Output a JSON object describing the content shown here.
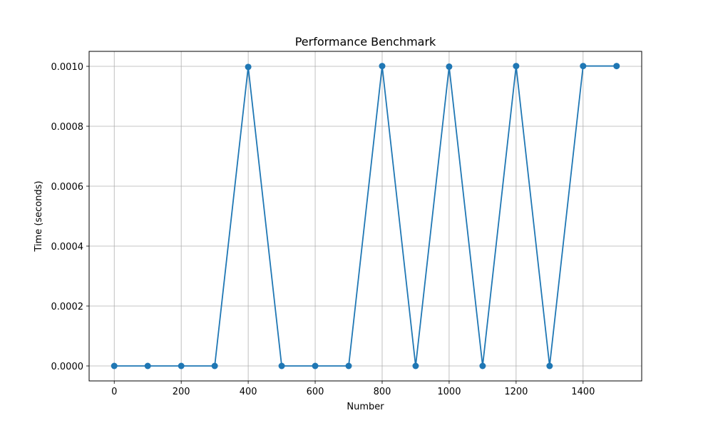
{
  "chart_data": {
    "type": "line",
    "title": "Performance Benchmark",
    "xlabel": "Number",
    "ylabel": "Time (seconds)",
    "x": [
      0,
      100,
      200,
      300,
      400,
      500,
      600,
      700,
      800,
      900,
      1000,
      1100,
      1200,
      1300,
      1400,
      1500
    ],
    "series": [
      {
        "values": [
          0,
          0,
          0,
          0,
          0.000998,
          0,
          0,
          0,
          0.001001,
          0,
          0.000999,
          0,
          0.001001,
          0,
          0.001001,
          0.001001
        ],
        "color": "#1f77b4"
      }
    ],
    "xlim": [
      -75,
      1575
    ],
    "ylim": [
      -5e-05,
      0.00105
    ],
    "xticks": [
      0,
      200,
      400,
      600,
      800,
      1000,
      1200,
      1400
    ],
    "yticks": [
      0,
      0.0002,
      0.0004,
      0.0006,
      0.0008,
      0.001
    ],
    "xtick_labels": [
      "0",
      "200",
      "400",
      "600",
      "800",
      "1000",
      "1200",
      "1400"
    ],
    "ytick_labels": [
      "0.0000",
      "0.0002",
      "0.0004",
      "0.0006",
      "0.0008",
      "0.0010"
    ],
    "grid": true,
    "marker": "circle"
  }
}
